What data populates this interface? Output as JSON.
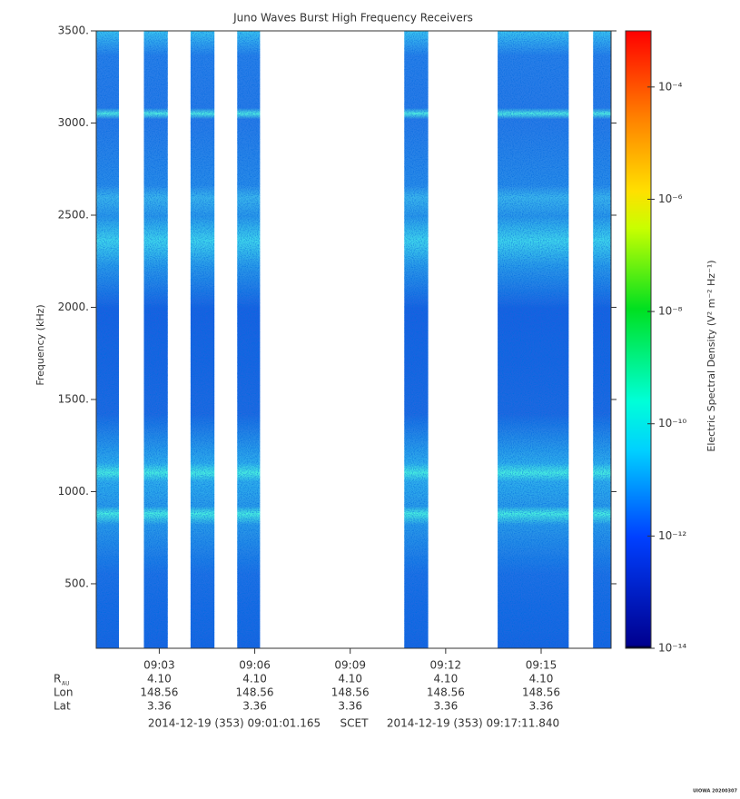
{
  "chart_data": {
    "type": "spectrogram",
    "title": "Juno Waves Burst High Frequency Receivers",
    "ylabel": "Frequency (kHz)",
    "colorbar_label": "Electric Spectral Density (V² m⁻² Hz⁻¹)",
    "ylim": [
      150,
      3500
    ],
    "yticks": [
      {
        "value": 500,
        "label": "500."
      },
      {
        "value": 1000,
        "label": "1000."
      },
      {
        "value": 1500,
        "label": "1500."
      },
      {
        "value": 2000,
        "label": "2000."
      },
      {
        "value": 2500,
        "label": "2500."
      },
      {
        "value": 3000,
        "label": "3000."
      },
      {
        "value": 3500,
        "label": "3500."
      }
    ],
    "xlim": [
      "2014-12-19 (353) 09:01:01.165",
      "2014-12-19 (353) 09:17:11.840"
    ],
    "time_system": "SCET",
    "xticks": [
      "09:03",
      "09:06",
      "09:09",
      "09:12",
      "09:15"
    ],
    "segments": [
      {
        "start": "09:01:01",
        "end": "09:01:44"
      },
      {
        "start": "09:02:31",
        "end": "09:03:16"
      },
      {
        "start": "09:03:59",
        "end": "09:04:44"
      },
      {
        "start": "09:05:27",
        "end": "09:06:10"
      },
      {
        "start": "09:10:42",
        "end": "09:11:27"
      },
      {
        "start": "09:13:38",
        "end": "09:15:52"
      },
      {
        "start": "09:16:38",
        "end": "09:17:11"
      }
    ],
    "log_scale_color": true,
    "clim": [
      1e-14,
      0.001
    ],
    "cticks": [
      {
        "value": 1e-14,
        "label": "10⁻¹⁴"
      },
      {
        "value": 1e-12,
        "label": "10⁻¹²"
      },
      {
        "value": 1e-10,
        "label": "10⁻¹⁰"
      },
      {
        "value": 1e-08,
        "label": "10⁻⁸"
      },
      {
        "value": 1e-06,
        "label": "10⁻⁶"
      },
      {
        "value": 0.0001,
        "label": "10⁻⁴"
      }
    ],
    "ephemeris": [
      {
        "label": "R",
        "subscript": "AU",
        "values": [
          "4.10",
          "4.10",
          "4.10",
          "4.10",
          "4.10"
        ]
      },
      {
        "label": "Lon",
        "values": [
          "148.56",
          "148.56",
          "148.56",
          "148.56",
          "148.56"
        ]
      },
      {
        "label": "Lat",
        "values": [
          "3.36",
          "3.36",
          "3.36",
          "3.36",
          "3.36"
        ]
      }
    ],
    "credit": "UIOWA 20200307"
  }
}
